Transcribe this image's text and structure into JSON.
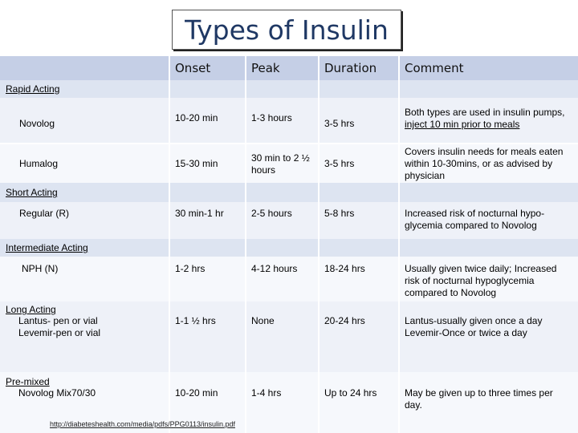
{
  "title": "Types of Insulin",
  "headers": {
    "onset": "Onset",
    "peak": "Peak",
    "duration": "Duration",
    "comment": "Comment"
  },
  "sections": {
    "rapid": "Rapid Acting",
    "short": "Short Acting",
    "intermediate": "Intermediate  Acting",
    "long": "Long Acting",
    "premixed": "Pre-mixed"
  },
  "rows": [
    {
      "name": "Novolog",
      "onset": "10-20 min",
      "peak": "1-3 hours",
      "duration": "3-5 hrs",
      "comment_a": "Both types are used in insulin pumps, ",
      "comment_b": "inject 10 min prior to meals"
    },
    {
      "name": "Humalog",
      "onset": "15-30 min",
      "peak": "30 min to 2 ½ hours",
      "duration": "3-5 hrs",
      "comment": "Covers insulin needs for meals eaten within 10-30mins, or as advised by physician"
    },
    {
      "name": "Regular (R)",
      "onset": "30 min-1 hr",
      "peak": "2-5 hours",
      "duration": "5-8 hrs",
      "comment": "Increased risk of nocturnal hypo-glycemia compared to Novolog"
    },
    {
      "name": "NPH (N)",
      "onset": "1-2 hrs",
      "peak": "4-12 hours",
      "duration": "18-24 hrs",
      "comment": "Usually given twice daily; Increased risk of nocturnal hypoglycemia compared to Novolog"
    },
    {
      "name_1": "Lantus- pen or vial",
      "name_2": "Levemir-pen or vial",
      "onset": "1-1 ½ hrs",
      "peak": "None",
      "duration": "20-24 hrs",
      "comment_1": "Lantus-usually given once a day",
      "comment_2": "Levemir-Once or twice a day"
    },
    {
      "name": "Novolog Mix70/30",
      "onset": "10-20 min",
      "peak": "1-4 hrs",
      "duration": "Up to 24 hrs",
      "comment": "May be given up to three times per day."
    }
  ],
  "source": "http://diabeteshealth.com/media/pdfs/PPG0113/insulin.pdf"
}
